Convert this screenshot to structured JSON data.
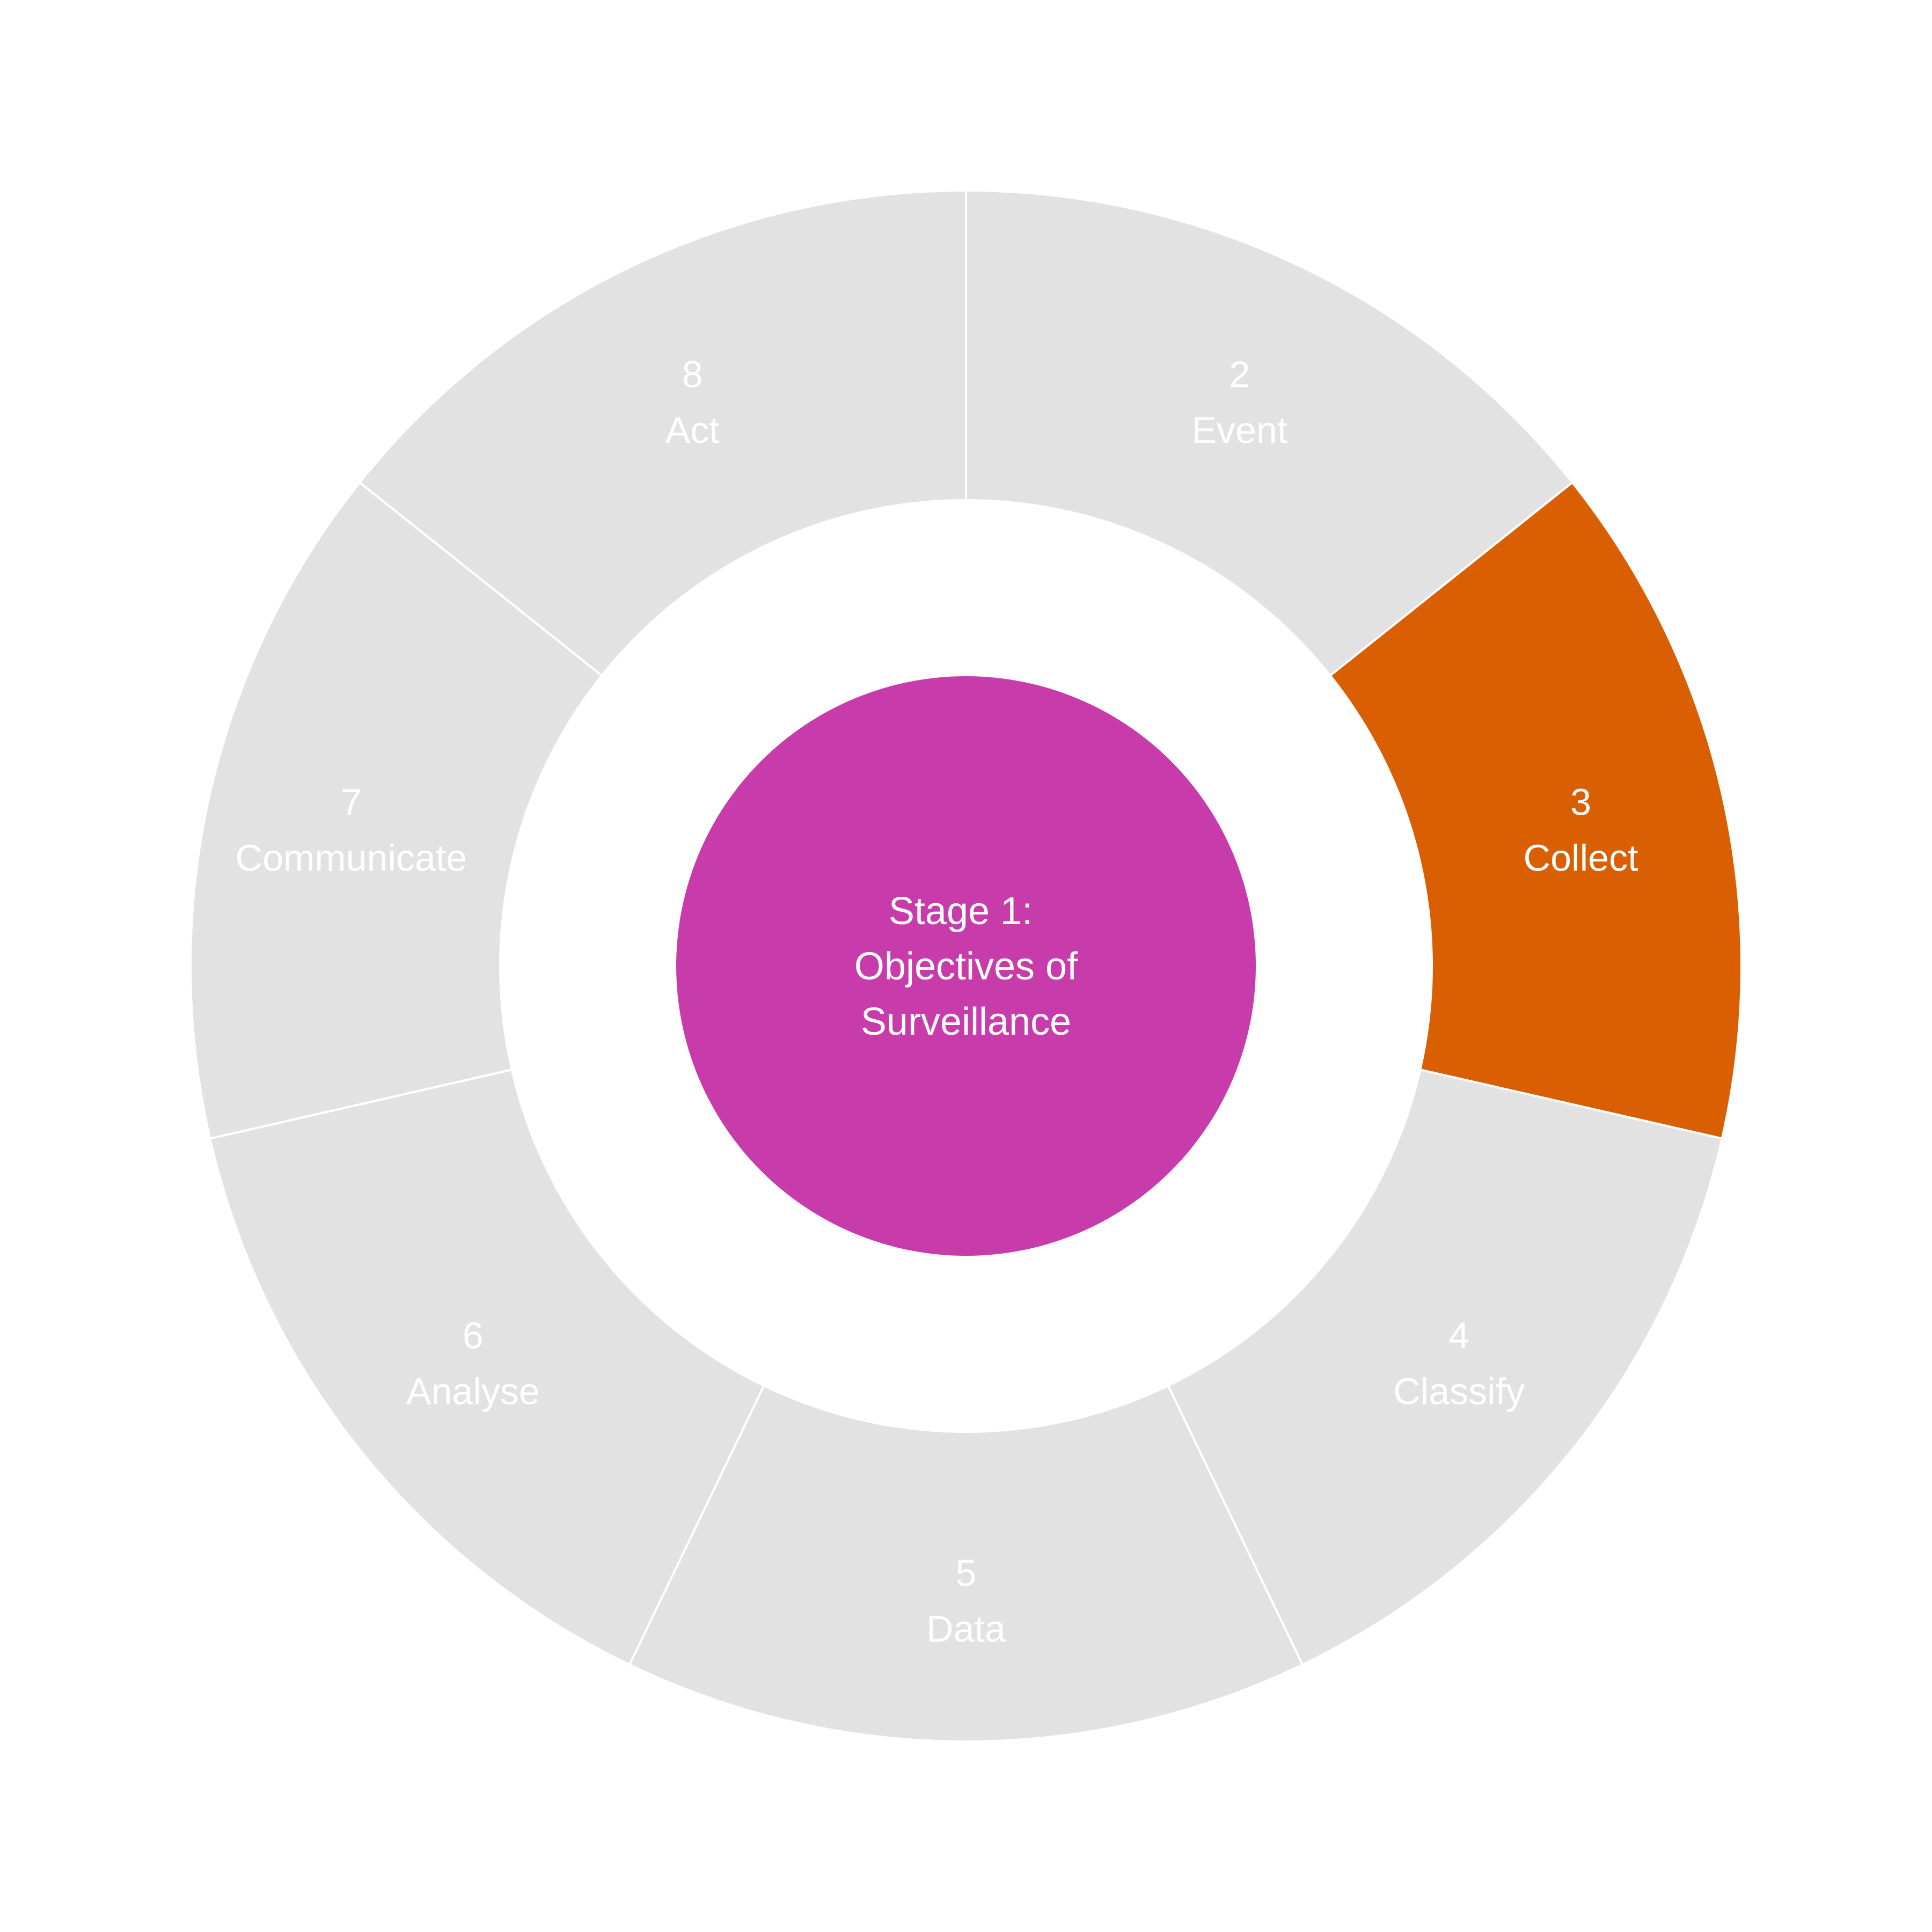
{
  "diagram": {
    "center": {
      "lines": [
        "Stage 1:",
        "Objectives of",
        "Surveillance"
      ],
      "color": "#C83BAA"
    },
    "colors": {
      "inactive": "#E2E2E2",
      "active": "#D95F02",
      "divider": "#FFFFFF",
      "text": "#FFFFFF"
    },
    "segments": [
      {
        "number": "2",
        "label": "Event",
        "active": false
      },
      {
        "number": "3",
        "label": "Collect",
        "active": true
      },
      {
        "number": "4",
        "label": "Classify",
        "active": false
      },
      {
        "number": "5",
        "label": "Data",
        "active": false
      },
      {
        "number": "6",
        "label": "Analyse",
        "active": false
      },
      {
        "number": "7",
        "label": "Communicate",
        "active": false
      },
      {
        "number": "8",
        "label": "Act",
        "active": false
      }
    ]
  }
}
